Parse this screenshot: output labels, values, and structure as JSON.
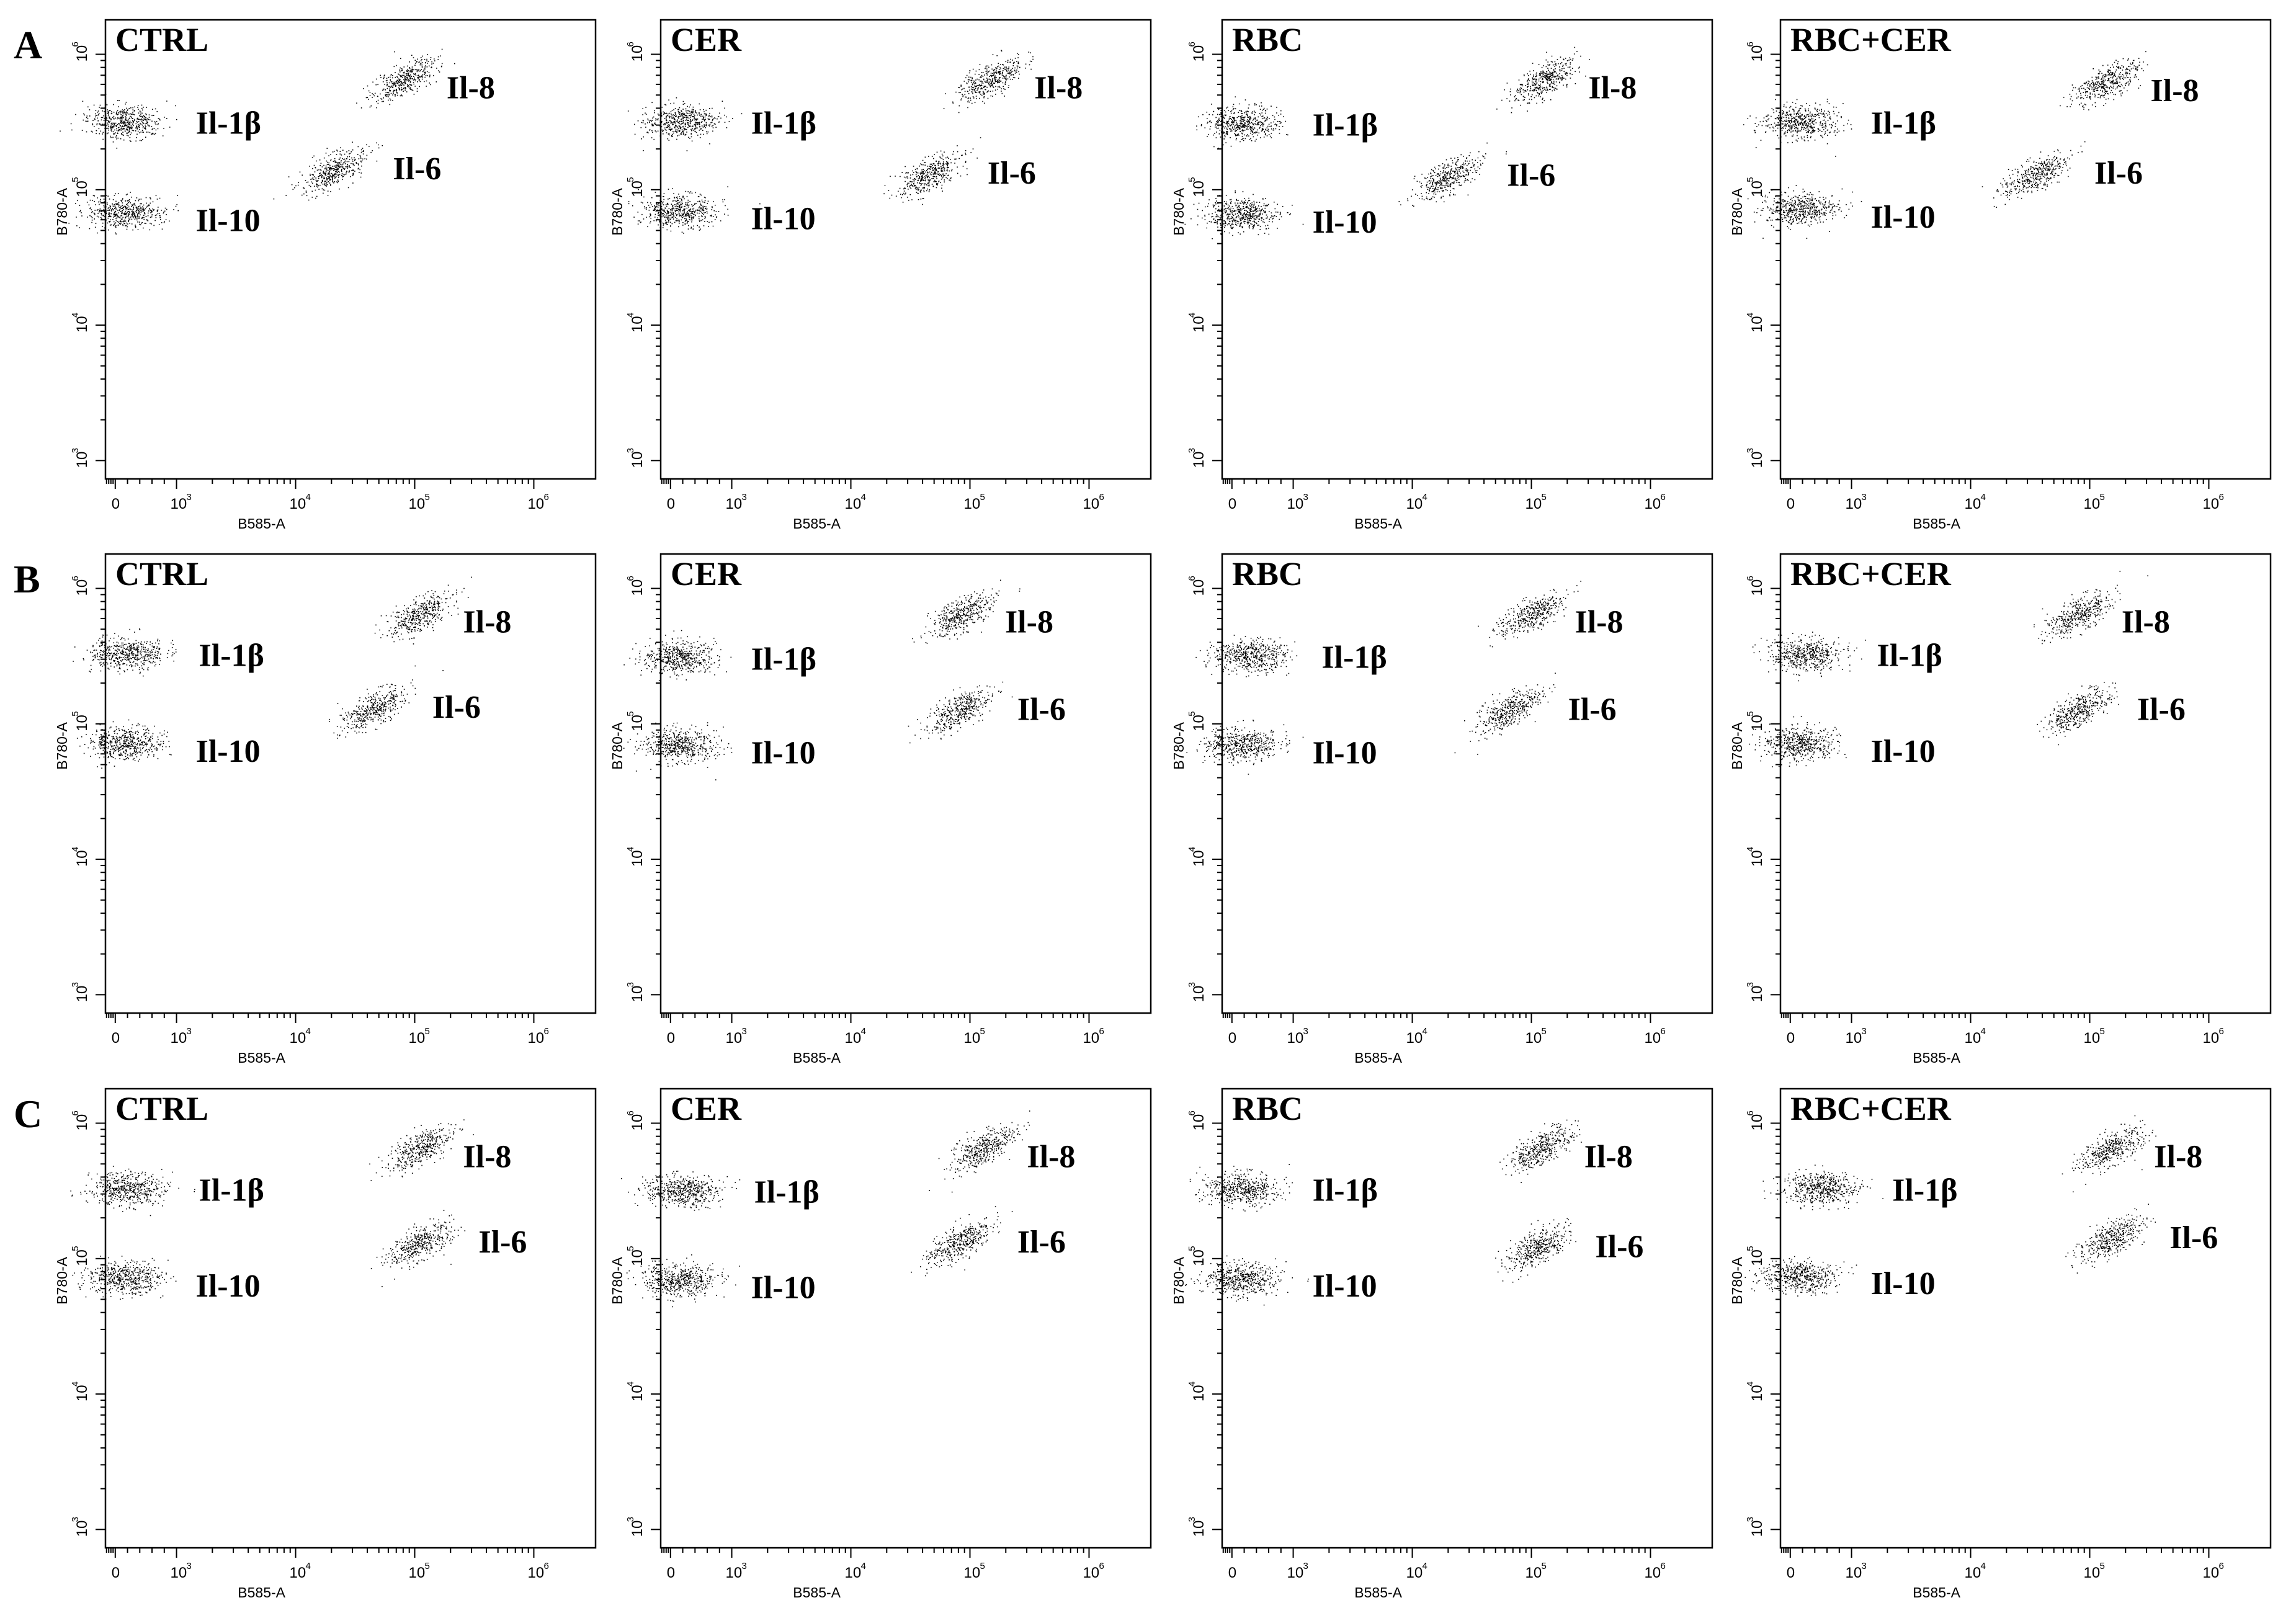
{
  "row_labels": [
    "A",
    "B",
    "C"
  ],
  "conditions": [
    "CTRL",
    "CER",
    "RBC",
    "RBC+CER"
  ],
  "axes": {
    "xlabel": "B585-A",
    "ylabel": "B780-A",
    "x_scale": "biexponential",
    "y_scale": "log",
    "xlim": [
      -900,
      1000000
    ],
    "ylim": [
      1000,
      1000000
    ],
    "x_ticks": [
      {
        "value": 0,
        "base": "0",
        "exp": ""
      },
      {
        "value": 1000,
        "base": "10",
        "exp": "3"
      },
      {
        "value": 10000,
        "base": "10",
        "exp": "4"
      },
      {
        "value": 100000,
        "base": "10",
        "exp": "5"
      },
      {
        "value": 1000000,
        "base": "10",
        "exp": "6"
      }
    ],
    "y_ticks": [
      {
        "value": 1000,
        "base": "10",
        "exp": "3"
      },
      {
        "value": 10000,
        "base": "10",
        "exp": "4"
      },
      {
        "value": 100000,
        "base": "10",
        "exp": "5"
      },
      {
        "value": 1000000,
        "base": "10",
        "exp": "6"
      }
    ]
  },
  "chart_data": [
    {
      "type": "scatter",
      "row": "A",
      "title": "CTRL",
      "xlabel": "B585-A",
      "ylabel": "B780-A",
      "grid": false,
      "clusters": [
        {
          "label": "Il-1β",
          "x": 150,
          "y": 320000
        },
        {
          "label": "Il-8",
          "x": 80000,
          "y": 650000
        },
        {
          "label": "Il-6",
          "x": 21000,
          "y": 140000
        },
        {
          "label": "Il-10",
          "x": 150,
          "y": 68000
        }
      ]
    },
    {
      "type": "scatter",
      "row": "A",
      "title": "CER",
      "xlabel": "B585-A",
      "ylabel": "B780-A",
      "grid": false,
      "clusters": [
        {
          "label": "Il-1β",
          "x": 150,
          "y": 320000
        },
        {
          "label": "Il-8",
          "x": 150000,
          "y": 650000
        },
        {
          "label": "Il-6",
          "x": 45000,
          "y": 130000
        },
        {
          "label": "Il-10",
          "x": 150,
          "y": 70000
        }
      ]
    },
    {
      "type": "scatter",
      "row": "A",
      "title": "RBC",
      "xlabel": "B585-A",
      "ylabel": "B780-A",
      "grid": false,
      "clusters": [
        {
          "label": "Il-1β",
          "x": 150,
          "y": 310000
        },
        {
          "label": "Il-8",
          "x": 130000,
          "y": 650000
        },
        {
          "label": "Il-6",
          "x": 20000,
          "y": 125000
        },
        {
          "label": "Il-10",
          "x": 150,
          "y": 66000
        }
      ]
    },
    {
      "type": "scatter",
      "row": "A",
      "title": "RBC+CER",
      "xlabel": "B585-A",
      "ylabel": "B780-A",
      "grid": false,
      "clusters": [
        {
          "label": "Il-1β",
          "x": 150,
          "y": 320000
        },
        {
          "label": "Il-8",
          "x": 140000,
          "y": 620000
        },
        {
          "label": "Il-6",
          "x": 35000,
          "y": 130000
        },
        {
          "label": "Il-10",
          "x": 150,
          "y": 72000
        }
      ]
    },
    {
      "type": "scatter",
      "row": "B",
      "title": "CTRL",
      "xlabel": "B585-A",
      "ylabel": "B780-A",
      "grid": false,
      "clusters": [
        {
          "label": "Il-1β",
          "x": 200,
          "y": 330000
        },
        {
          "label": "Il-8",
          "x": 110000,
          "y": 650000
        },
        {
          "label": "Il-6",
          "x": 45000,
          "y": 130000
        },
        {
          "label": "Il-10",
          "x": 150,
          "y": 72000
        }
      ]
    },
    {
      "type": "scatter",
      "row": "B",
      "title": "CER",
      "xlabel": "B585-A",
      "ylabel": "B780-A",
      "grid": false,
      "clusters": [
        {
          "label": "Il-1β",
          "x": 150,
          "y": 310000
        },
        {
          "label": "Il-8",
          "x": 85000,
          "y": 650000
        },
        {
          "label": "Il-6",
          "x": 80000,
          "y": 125000
        },
        {
          "label": "Il-10",
          "x": 150,
          "y": 70000
        }
      ]
    },
    {
      "type": "scatter",
      "row": "B",
      "title": "RBC",
      "xlabel": "B585-A",
      "ylabel": "B780-A",
      "grid": false,
      "clusters": [
        {
          "label": "Il-1β",
          "x": 300,
          "y": 320000
        },
        {
          "label": "Il-8",
          "x": 100000,
          "y": 650000
        },
        {
          "label": "Il-6",
          "x": 65000,
          "y": 125000
        },
        {
          "label": "Il-10",
          "x": 150,
          "y": 70000
        }
      ]
    },
    {
      "type": "scatter",
      "row": "B",
      "title": "RBC+CER",
      "xlabel": "B585-A",
      "ylabel": "B780-A",
      "grid": false,
      "clusters": [
        {
          "label": "Il-1β",
          "x": 250,
          "y": 330000
        },
        {
          "label": "Il-8",
          "x": 80000,
          "y": 650000
        },
        {
          "label": "Il-6",
          "x": 80000,
          "y": 125000
        },
        {
          "label": "Il-10",
          "x": 150,
          "y": 72000
        }
      ]
    },
    {
      "type": "scatter",
      "row": "C",
      "title": "CTRL",
      "xlabel": "B585-A",
      "ylabel": "B780-A",
      "grid": false,
      "clusters": [
        {
          "label": "Il-1β",
          "x": 200,
          "y": 330000
        },
        {
          "label": "Il-8",
          "x": 110000,
          "y": 650000
        },
        {
          "label": "Il-6",
          "x": 110000,
          "y": 130000
        },
        {
          "label": "Il-10",
          "x": 150,
          "y": 72000
        }
      ]
    },
    {
      "type": "scatter",
      "row": "C",
      "title": "CER",
      "xlabel": "B585-A",
      "ylabel": "B780-A",
      "grid": false,
      "clusters": [
        {
          "label": "Il-1β",
          "x": 200,
          "y": 320000
        },
        {
          "label": "Il-8",
          "x": 130000,
          "y": 650000
        },
        {
          "label": "Il-6",
          "x": 80000,
          "y": 130000
        },
        {
          "label": "Il-10",
          "x": 150,
          "y": 70000
        }
      ]
    },
    {
      "type": "scatter",
      "row": "C",
      "title": "RBC",
      "xlabel": "B585-A",
      "ylabel": "B780-A",
      "grid": false,
      "clusters": [
        {
          "label": "Il-1β",
          "x": 150,
          "y": 330000
        },
        {
          "label": "Il-8",
          "x": 120000,
          "y": 650000
        },
        {
          "label": "Il-6",
          "x": 110000,
          "y": 120000
        },
        {
          "label": "Il-10",
          "x": 150,
          "y": 72000
        }
      ]
    },
    {
      "type": "scatter",
      "row": "C",
      "title": "RBC+CER",
      "xlabel": "B585-A",
      "ylabel": "B780-A",
      "grid": false,
      "clusters": [
        {
          "label": "Il-1β",
          "x": 500,
          "y": 330000
        },
        {
          "label": "Il-8",
          "x": 150000,
          "y": 650000
        },
        {
          "label": "Il-6",
          "x": 150000,
          "y": 140000
        },
        {
          "label": "Il-10",
          "x": 150,
          "y": 75000
        }
      ]
    }
  ]
}
